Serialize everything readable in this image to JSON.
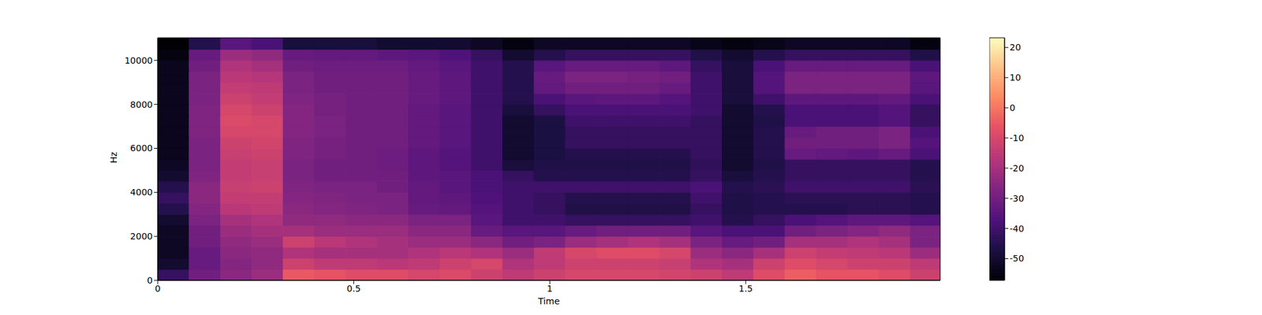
{
  "chart_data": {
    "type": "heatmap",
    "x_label": "Time",
    "y_label": "Hz",
    "x_bins": [
      0,
      0.08,
      0.16,
      0.24,
      0.32,
      0.4,
      0.48,
      0.56,
      0.64,
      0.72,
      0.8,
      0.88,
      0.96,
      1.04,
      1.12,
      1.2,
      1.28,
      1.36,
      1.44,
      1.52,
      1.6,
      1.68,
      1.76,
      1.84,
      1.92,
      1.996
    ],
    "y_bins": [
      0,
      500,
      1000,
      1500,
      2000,
      2500,
      3000,
      3500,
      4000,
      4500,
      5000,
      5500,
      6000,
      6500,
      7000,
      7500,
      8000,
      8500,
      9000,
      9500,
      10000,
      10500,
      11025
    ],
    "cells": [
      [
        -42,
        -30,
        -25,
        -22,
        -5,
        -6,
        -8,
        -8,
        -10,
        -9,
        -12,
        -15,
        -12,
        -10,
        -10,
        -10,
        -11,
        -12,
        -15,
        -8,
        -4,
        -6,
        -6,
        -8,
        -12
      ],
      [
        -50,
        -32,
        -26,
        -24,
        -12,
        -15,
        -15,
        -16,
        -15,
        -12,
        -10,
        -18,
        -15,
        -12,
        -12,
        -12,
        -13,
        -18,
        -20,
        -12,
        -8,
        -10,
        -12,
        -12,
        -15
      ],
      [
        -52,
        -32,
        -25,
        -24,
        -18,
        -20,
        -20,
        -20,
        -18,
        -16,
        -18,
        -22,
        -15,
        -10,
        -8,
        -8,
        -10,
        -22,
        -25,
        -20,
        -12,
        -14,
        -15,
        -16,
        -22
      ],
      [
        -52,
        -30,
        -24,
        -22,
        -12,
        -16,
        -18,
        -20,
        -22,
        -22,
        -25,
        -30,
        -28,
        -22,
        -20,
        -18,
        -20,
        -28,
        -32,
        -30,
        -20,
        -20,
        -18,
        -20,
        -28
      ],
      [
        -52,
        -30,
        -22,
        -20,
        -20,
        -22,
        -22,
        -22,
        -25,
        -25,
        -32,
        -35,
        -35,
        -32,
        -30,
        -30,
        -30,
        -35,
        -38,
        -38,
        -30,
        -28,
        -26,
        -24,
        -28
      ],
      [
        -50,
        -28,
        -20,
        -18,
        -24,
        -24,
        -25,
        -25,
        -28,
        -28,
        -35,
        -40,
        -40,
        -42,
        -42,
        -42,
        -42,
        -40,
        -45,
        -42,
        -38,
        -36,
        -34,
        -34,
        -36
      ],
      [
        -45,
        -26,
        -16,
        -15,
        -25,
        -26,
        -27,
        -28,
        -32,
        -33,
        -36,
        -40,
        -42,
        -46,
        -46,
        -46,
        -46,
        -42,
        -46,
        -45,
        -45,
        -45,
        -44,
        -44,
        -45
      ],
      [
        -42,
        -25,
        -14,
        -14,
        -26,
        -27,
        -28,
        -28,
        -33,
        -34,
        -37,
        -40,
        -42,
        -45,
        -45,
        -45,
        -45,
        -40,
        -46,
        -45,
        -44,
        -44,
        -44,
        -44,
        -45
      ],
      [
        -45,
        -25,
        -13,
        -12,
        -27,
        -28,
        -28,
        -30,
        -33,
        -35,
        -38,
        -40,
        -40,
        -40,
        -40,
        -40,
        -40,
        -38,
        -45,
        -44,
        -40,
        -40,
        -40,
        -40,
        -44
      ],
      [
        -50,
        -27,
        -14,
        -13,
        -28,
        -30,
        -30,
        -30,
        -34,
        -35,
        -38,
        -42,
        -45,
        -45,
        -45,
        -45,
        -45,
        -42,
        -48,
        -45,
        -42,
        -42,
        -42,
        -42,
        -45
      ],
      [
        -52,
        -28,
        -14,
        -13,
        -28,
        -30,
        -30,
        -31,
        -34,
        -36,
        -40,
        -48,
        -46,
        -46,
        -46,
        -46,
        -46,
        -43,
        -50,
        -46,
        -42,
        -42,
        -42,
        -42,
        -45
      ],
      [
        -53,
        -28,
        -13,
        -12,
        -27,
        -29,
        -30,
        -31,
        -34,
        -36,
        -40,
        -50,
        -47,
        -45,
        -45,
        -45,
        -45,
        -42,
        -50,
        -45,
        -32,
        -33,
        -34,
        -32,
        -38
      ],
      [
        -53,
        -28,
        -12,
        -11,
        -27,
        -29,
        -30,
        -30,
        -33,
        -35,
        -40,
        -50,
        -47,
        -42,
        -42,
        -42,
        -42,
        -42,
        -50,
        -45,
        -30,
        -30,
        -30,
        -28,
        -36
      ],
      [
        -53,
        -27,
        -10,
        -10,
        -26,
        -28,
        -30,
        -30,
        -33,
        -35,
        -40,
        -50,
        -47,
        -42,
        -42,
        -42,
        -42,
        -42,
        -50,
        -45,
        -32,
        -30,
        -30,
        -28,
        -38
      ],
      [
        -53,
        -27,
        -9,
        -10,
        -26,
        -28,
        -30,
        -30,
        -33,
        -35,
        -40,
        -50,
        -47,
        -40,
        -40,
        -40,
        -40,
        -42,
        -50,
        -46,
        -38,
        -38,
        -38,
        -36,
        -42
      ],
      [
        -53,
        -27,
        -10,
        -12,
        -26,
        -29,
        -30,
        -30,
        -33,
        -35,
        -40,
        -48,
        -42,
        -38,
        -38,
        -38,
        -38,
        -40,
        -50,
        -45,
        -38,
        -38,
        -38,
        -36,
        -42
      ],
      [
        -53,
        -28,
        -12,
        -14,
        -27,
        -29,
        -30,
        -30,
        -32,
        -34,
        -40,
        -45,
        -38,
        -35,
        -34,
        -34,
        -36,
        -40,
        -48,
        -40,
        -34,
        -34,
        -34,
        -33,
        -38
      ],
      [
        -53,
        -28,
        -14,
        -15,
        -28,
        -30,
        -30,
        -30,
        -32,
        -34,
        -40,
        -45,
        -33,
        -30,
        -30,
        -30,
        -32,
        -40,
        -48,
        -36,
        -28,
        -28,
        -28,
        -28,
        -35
      ],
      [
        -53,
        -28,
        -16,
        -17,
        -28,
        -30,
        -30,
        -30,
        -32,
        -34,
        -40,
        -45,
        -32,
        -28,
        -28,
        -29,
        -30,
        -40,
        -48,
        -36,
        -28,
        -28,
        -28,
        -28,
        -34
      ],
      [
        -53,
        -30,
        -18,
        -20,
        -30,
        -31,
        -31,
        -31,
        -33,
        -35,
        -40,
        -45,
        -35,
        -32,
        -32,
        -32,
        -34,
        -42,
        -48,
        -38,
        -32,
        -32,
        -32,
        -32,
        -38
      ],
      [
        -55,
        -32,
        -22,
        -24,
        -32,
        -33,
        -33,
        -34,
        -35,
        -37,
        -42,
        -50,
        -45,
        -42,
        -42,
        -42,
        -42,
        -46,
        -50,
        -45,
        -42,
        -42,
        -42,
        -42,
        -46
      ],
      [
        -57,
        -45,
        -35,
        -38,
        -48,
        -48,
        -48,
        -50,
        -50,
        -50,
        -52,
        -55,
        -52,
        -52,
        -52,
        -52,
        -52,
        -54,
        -55,
        -54,
        -52,
        -52,
        -52,
        -52,
        -55
      ]
    ],
    "xlim": [
      0,
      1.996
    ],
    "ylim": [
      0,
      11025
    ],
    "xticks": [
      0,
      0.5,
      1,
      1.5
    ],
    "yticks": [
      0,
      2000,
      4000,
      6000,
      8000,
      10000
    ],
    "colorbar": {
      "range": [
        -57.2,
        23.2
      ],
      "ticks": [
        -50,
        -40,
        -30,
        -20,
        -10,
        0,
        10,
        20
      ]
    }
  }
}
